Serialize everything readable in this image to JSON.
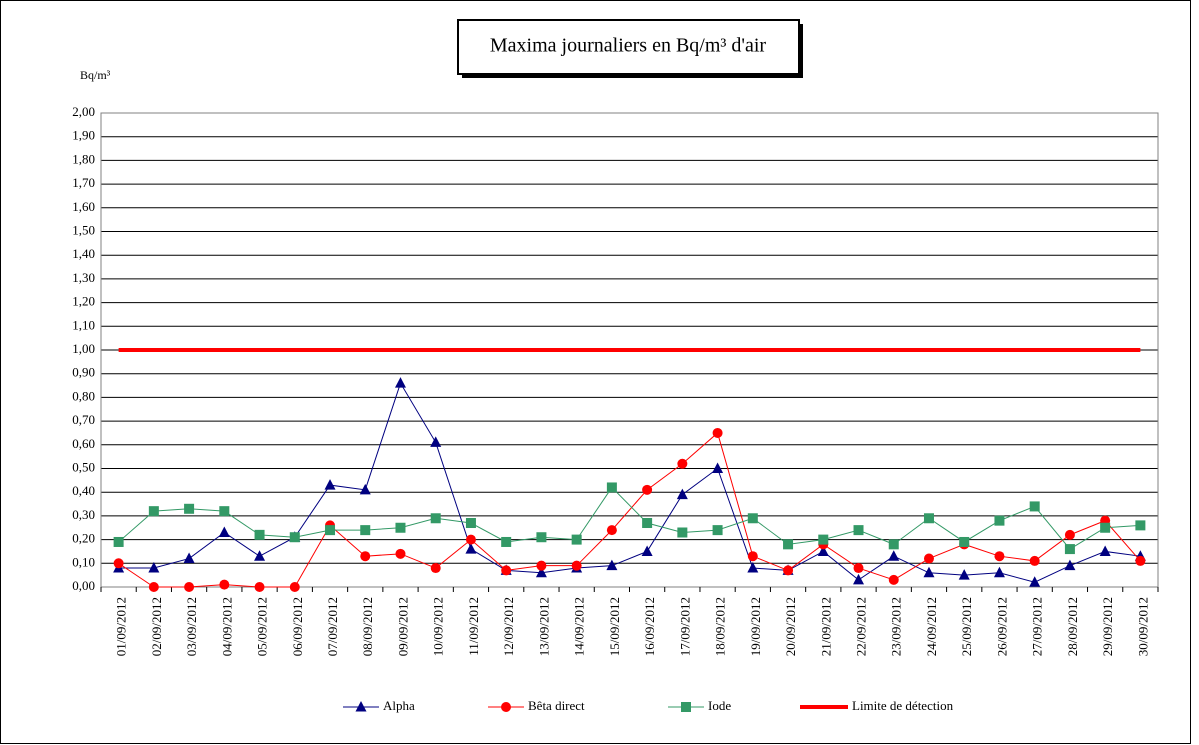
{
  "chart_data": {
    "type": "line",
    "title": "Maxima journaliers en Bq/m³ d'air",
    "y_label": "Bq/m³",
    "categories": [
      "01/09/2012",
      "02/09/2012",
      "03/09/2012",
      "04/09/2012",
      "05/09/2012",
      "06/09/2012",
      "07/09/2012",
      "08/09/2012",
      "09/09/2012",
      "10/09/2012",
      "11/09/2012",
      "12/09/2012",
      "13/09/2012",
      "14/09/2012",
      "15/09/2012",
      "16/09/2012",
      "17/09/2012",
      "18/09/2012",
      "19/09/2012",
      "20/09/2012",
      "21/09/2012",
      "22/09/2012",
      "23/09/2012",
      "24/09/2012",
      "25/09/2012",
      "26/09/2012",
      "27/09/2012",
      "28/09/2012",
      "29/09/2012",
      "30/09/2012"
    ],
    "series": [
      {
        "name": "Alpha",
        "color": "#000080",
        "marker": "triangle",
        "values": [
          0.08,
          0.08,
          0.12,
          0.23,
          0.13,
          0.21,
          0.43,
          0.41,
          0.86,
          0.61,
          0.16,
          0.07,
          0.06,
          0.08,
          0.09,
          0.15,
          0.39,
          0.5,
          0.08,
          0.07,
          0.15,
          0.03,
          0.13,
          0.06,
          0.05,
          0.06,
          0.02,
          0.09,
          0.15,
          0.13
        ]
      },
      {
        "name": "Bêta direct",
        "color": "#ff0000",
        "marker": "circle",
        "values": [
          0.1,
          0.0,
          0.0,
          0.01,
          0.0,
          0.0,
          0.26,
          0.13,
          0.14,
          0.08,
          0.2,
          0.07,
          0.09,
          0.09,
          0.24,
          0.41,
          0.52,
          0.65,
          0.13,
          0.07,
          0.18,
          0.08,
          0.03,
          0.12,
          0.18,
          0.13,
          0.11,
          0.22,
          0.28,
          0.11
        ]
      },
      {
        "name": "Iode",
        "color": "#339966",
        "marker": "square",
        "values": [
          0.19,
          0.32,
          0.33,
          0.32,
          0.22,
          0.21,
          0.24,
          0.24,
          0.25,
          0.29,
          0.27,
          0.19,
          0.21,
          0.2,
          0.42,
          0.27,
          0.23,
          0.24,
          0.29,
          0.18,
          0.2,
          0.24,
          0.18,
          0.29,
          0.19,
          0.28,
          0.34,
          0.16,
          0.25,
          0.26
        ]
      },
      {
        "name": "Limite de détection",
        "color": "#ff0000",
        "marker": "none",
        "values": [
          1,
          1,
          1,
          1,
          1,
          1,
          1,
          1,
          1,
          1,
          1,
          1,
          1,
          1,
          1,
          1,
          1,
          1,
          1,
          1,
          1,
          1,
          1,
          1,
          1,
          1,
          1,
          1,
          1,
          1
        ]
      }
    ],
    "ylim": [
      0,
      2
    ],
    "yticks": [
      {
        "value": 0,
        "label": "0,00"
      },
      {
        "value": 0.1,
        "label": "0,10"
      },
      {
        "value": 0.2,
        "label": "0,20"
      },
      {
        "value": 0.3,
        "label": "0,30"
      },
      {
        "value": 0.4,
        "label": "0,40"
      },
      {
        "value": 0.5,
        "label": "0,50"
      },
      {
        "value": 0.6,
        "label": "0,60"
      },
      {
        "value": 0.7,
        "label": "0,70"
      },
      {
        "value": 0.8,
        "label": "0,80"
      },
      {
        "value": 0.9,
        "label": "0,90"
      },
      {
        "value": 1,
        "label": "1,00"
      },
      {
        "value": 1.1,
        "label": "1,10"
      },
      {
        "value": 1.2,
        "label": "1,20"
      },
      {
        "value": 1.3,
        "label": "1,30"
      },
      {
        "value": 1.4,
        "label": "1,40"
      },
      {
        "value": 1.5,
        "label": "1,50"
      },
      {
        "value": 1.6,
        "label": "1,60"
      },
      {
        "value": 1.7,
        "label": "1,70"
      },
      {
        "value": 1.8,
        "label": "1,80"
      },
      {
        "value": 1.9,
        "label": "1,90"
      },
      {
        "value": 2,
        "label": "2,00"
      }
    ],
    "grid": true,
    "legend": "bottom"
  }
}
